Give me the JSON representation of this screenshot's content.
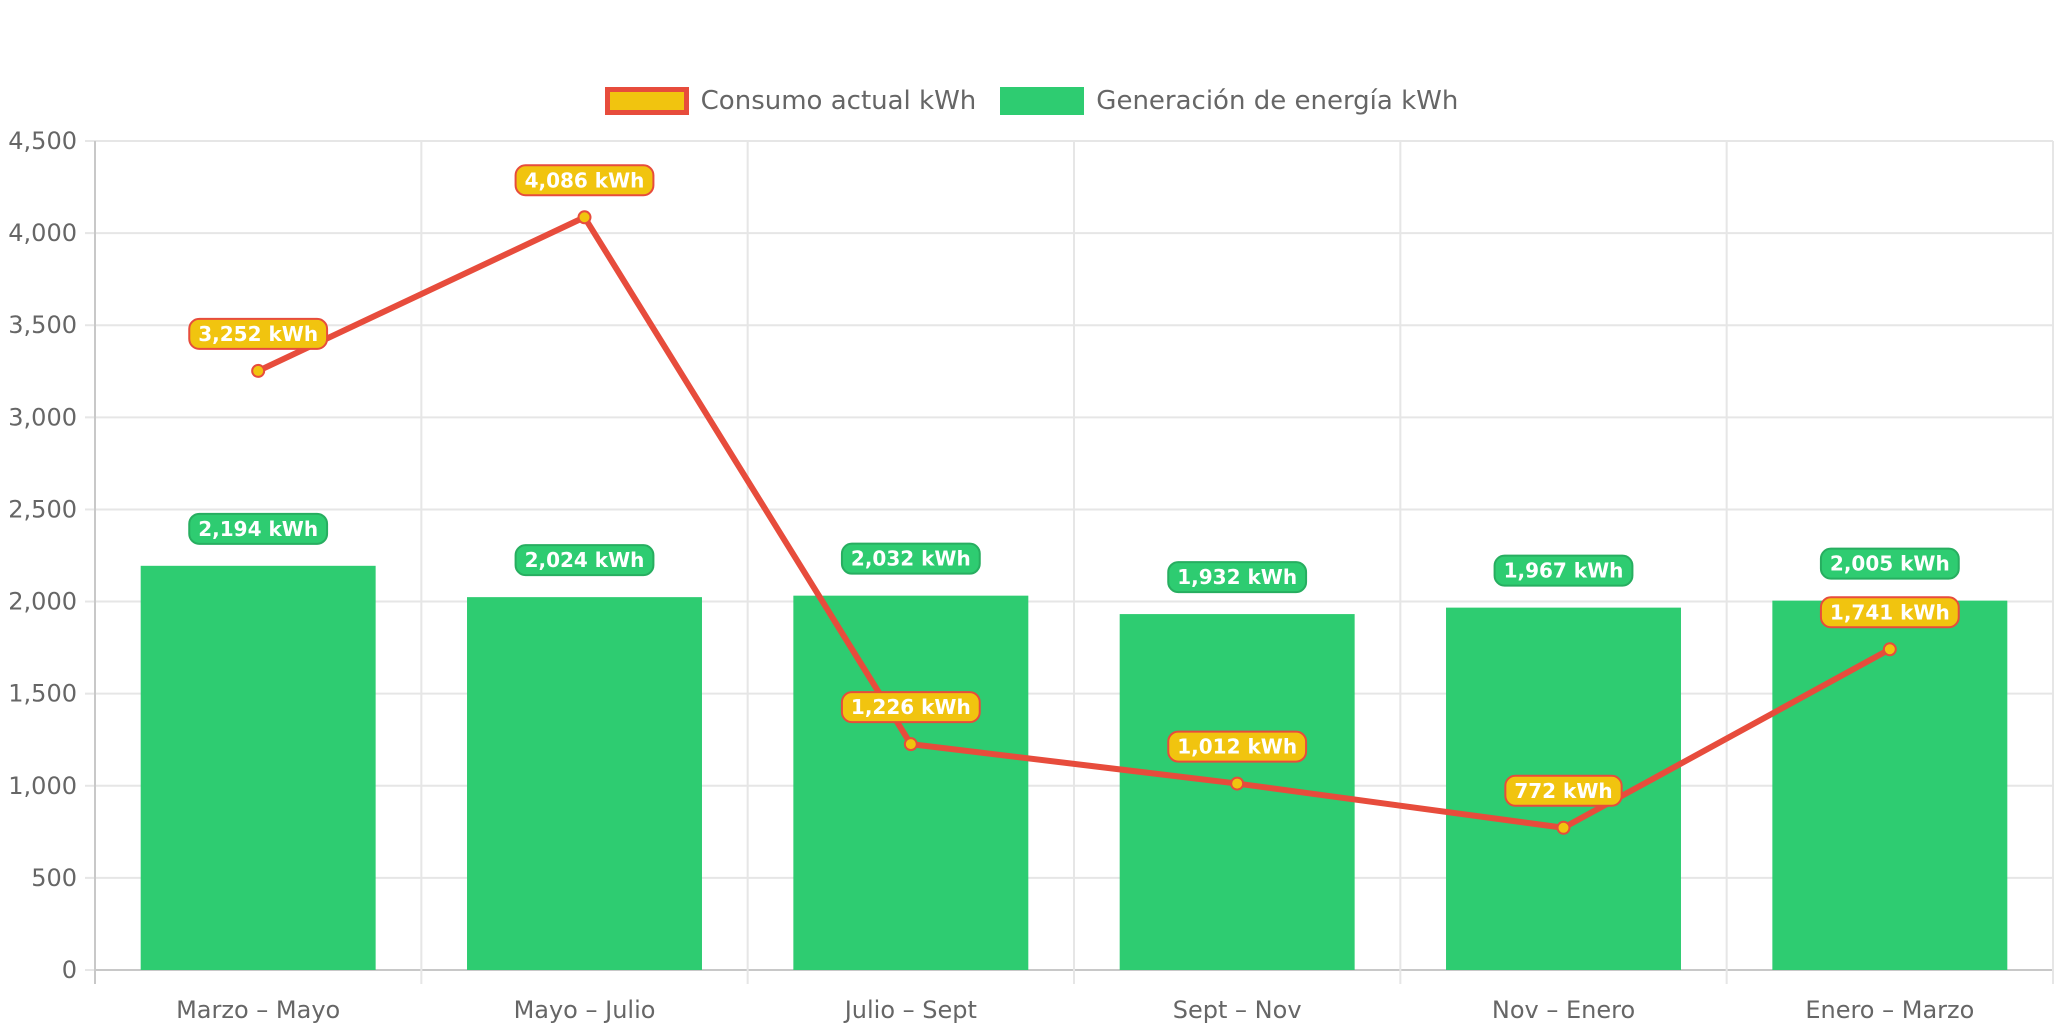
{
  "chart_data": {
    "type": "bar",
    "categories": [
      "Marzo – Mayo",
      "Mayo – Julio",
      "Julio – Sept",
      "Sept – Nov",
      "Nov – Enero",
      "Enero – Marzo"
    ],
    "series": [
      {
        "name": "Consumo actual kWh",
        "type": "line",
        "values": [
          3252,
          4086,
          1226,
          1012,
          772,
          1741
        ],
        "labels": [
          "3,252 kWh",
          "4,086 kWh",
          "1,226 kWh",
          "1,012 kWh",
          "772 kWh",
          "1,741 kWh"
        ],
        "color": "#e74c3c",
        "fill": "#f1c40f"
      },
      {
        "name": "Generación de energía kWh",
        "type": "bar",
        "values": [
          2194,
          2024,
          2032,
          1932,
          1967,
          2005
        ],
        "labels": [
          "2,194 kWh",
          "2,024 kWh",
          "2,032 kWh",
          "1,932 kWh",
          "1,967 kWh",
          "2,005 kWh"
        ],
        "color": "#2ecc71",
        "label_border": "#27ae60"
      }
    ],
    "ylim": [
      0,
      4500
    ],
    "yticks": [
      "0",
      "500",
      "1,000",
      "1,500",
      "2,000",
      "2,500",
      "3,000",
      "3,500",
      "4,000",
      "4,500"
    ],
    "grid": true,
    "legend": "top-center"
  }
}
